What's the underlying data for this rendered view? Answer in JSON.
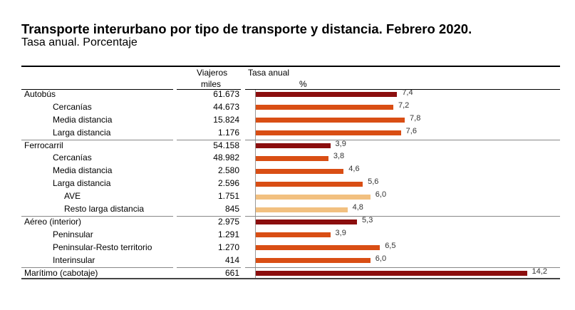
{
  "title": "Transporte interurbano por tipo de transporte y distancia. Febrero 2020.",
  "subtitle": "Tasa anual. Porcentaje",
  "headers": {
    "viajeros": "Viajeros",
    "miles": "miles",
    "tasa": "Tasa anual",
    "pct": "%"
  },
  "colors": {
    "total": "#8B0E0E",
    "sub": "#D94E14",
    "subsub": "#F2C080"
  },
  "chart_data": {
    "type": "bar",
    "orientation": "horizontal",
    "xlabel": "%",
    "xlim": [
      0,
      14.2
    ],
    "rows": [
      {
        "label": "Autobús",
        "level": 0,
        "viajeros": "61.673",
        "tasa": 7.4,
        "tasa_label": "7,4"
      },
      {
        "label": "Cercanías",
        "level": 1,
        "viajeros": "44.673",
        "tasa": 7.2,
        "tasa_label": "7,2"
      },
      {
        "label": "Media distancia",
        "level": 1,
        "viajeros": "15.824",
        "tasa": 7.8,
        "tasa_label": "7,8"
      },
      {
        "label": "Larga distancia",
        "level": 1,
        "viajeros": "1.176",
        "tasa": 7.6,
        "tasa_label": "7,6"
      },
      {
        "label": "Ferrocarril",
        "level": 0,
        "viajeros": "54.158",
        "tasa": 3.9,
        "tasa_label": "3,9"
      },
      {
        "label": "Cercanías",
        "level": 1,
        "viajeros": "48.982",
        "tasa": 3.8,
        "tasa_label": "3,8"
      },
      {
        "label": "Media distancia",
        "level": 1,
        "viajeros": "2.580",
        "tasa": 4.6,
        "tasa_label": "4,6"
      },
      {
        "label": "Larga distancia",
        "level": 1,
        "viajeros": "2.596",
        "tasa": 5.6,
        "tasa_label": "5,6"
      },
      {
        "label": "AVE",
        "level": 2,
        "viajeros": "1.751",
        "tasa": 6.0,
        "tasa_label": "6,0"
      },
      {
        "label": "Resto larga distancia",
        "level": 2,
        "viajeros": "845",
        "tasa": 4.8,
        "tasa_label": "4,8"
      },
      {
        "label": "Aéreo (interior)",
        "level": 0,
        "viajeros": "2.975",
        "tasa": 5.3,
        "tasa_label": "5,3"
      },
      {
        "label": "Peninsular",
        "level": 1,
        "viajeros": "1.291",
        "tasa": 3.9,
        "tasa_label": "3,9"
      },
      {
        "label": "Peninsular-Resto territorio",
        "level": 1,
        "viajeros": "1.270",
        "tasa": 6.5,
        "tasa_label": "6,5"
      },
      {
        "label": "Interinsular",
        "level": 1,
        "viajeros": "414",
        "tasa": 6.0,
        "tasa_label": "6,0"
      },
      {
        "label": "Marítimo (cabotaje)",
        "level": 0,
        "viajeros": "661",
        "tasa": 14.2,
        "tasa_label": "14,2"
      }
    ]
  }
}
